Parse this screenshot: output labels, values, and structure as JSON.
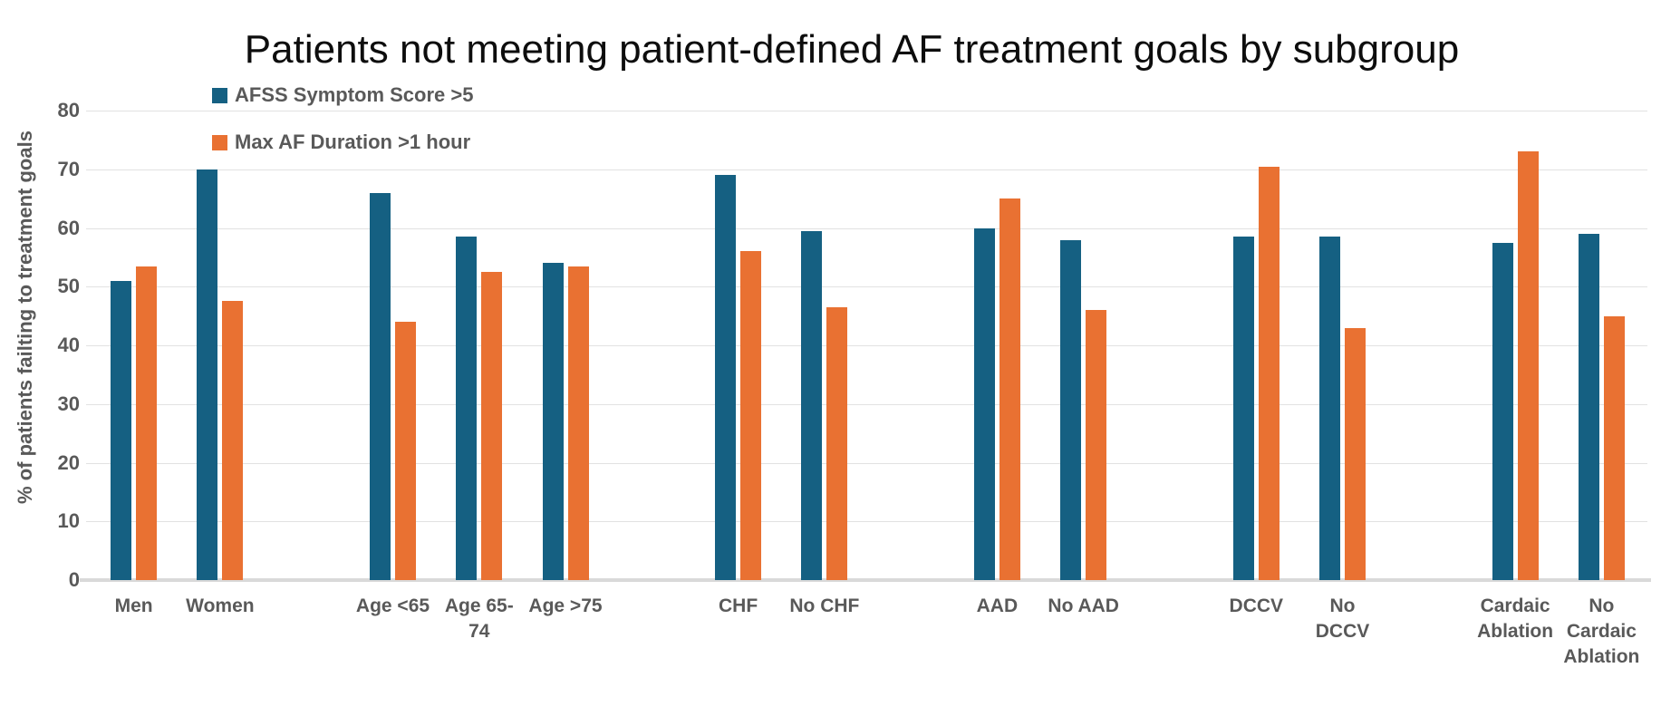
{
  "title": "Patients not meeting patient-defined AF treatment goals by subgroup",
  "legend": [
    {
      "label": "AFSS Symptom Score >5",
      "color": "#156082"
    },
    {
      "label": "Max AF Duration >1 hour",
      "color": "#E97132"
    }
  ],
  "y_axis": {
    "title": "% of patients failting to treatment goals",
    "min": 0,
    "max": 80,
    "tick_step": 10,
    "ticks": [
      0,
      10,
      20,
      30,
      40,
      50,
      60,
      70,
      80
    ]
  },
  "chart_data": {
    "type": "bar",
    "title": "Patients not meeting patient-defined AF treatment goals by subgroup",
    "xlabel": "",
    "ylabel": "% of patients failting to treatment goals",
    "ylim": [
      0,
      80
    ],
    "grid": true,
    "legend_position": "top-left",
    "categories": [
      "Men",
      "Women",
      "Age <65",
      "Age 65-74",
      "Age >75",
      "CHF",
      "No CHF",
      "AAD",
      "No AAD",
      "DCCV",
      "No DCCV",
      "Cardaic Ablation",
      "No Cardaic Ablation"
    ],
    "category_lines": [
      [
        "Men"
      ],
      [
        "Women"
      ],
      [
        "Age <65"
      ],
      [
        "Age 65-",
        "74"
      ],
      [
        "Age >75"
      ],
      [
        "CHF"
      ],
      [
        "No CHF"
      ],
      [
        "AAD"
      ],
      [
        "No AAD"
      ],
      [
        "DCCV"
      ],
      [
        "No",
        "DCCV"
      ],
      [
        "Cardaic",
        "Ablation"
      ],
      [
        "No",
        "Cardaic",
        "Ablation"
      ]
    ],
    "groups": [
      [
        "Men",
        "Women"
      ],
      [
        "Age <65",
        "Age 65-74",
        "Age >75"
      ],
      [
        "CHF",
        "No CHF"
      ],
      [
        "AAD",
        "No AAD"
      ],
      [
        "DCCV",
        "No DCCV"
      ],
      [
        "Cardaic Ablation",
        "No Cardaic Ablation"
      ]
    ],
    "series": [
      {
        "name": "AFSS Symptom Score >5",
        "color": "#156082",
        "values": [
          51,
          70,
          66,
          58.5,
          54,
          69,
          59.5,
          60,
          58,
          58.5,
          58.5,
          57.5,
          59
        ]
      },
      {
        "name": "Max AF Duration >1 hour",
        "color": "#E97132",
        "values": [
          53.5,
          47.5,
          44,
          52.5,
          53.5,
          56,
          46.5,
          65,
          46,
          70.5,
          43,
          73,
          45
        ]
      }
    ]
  }
}
